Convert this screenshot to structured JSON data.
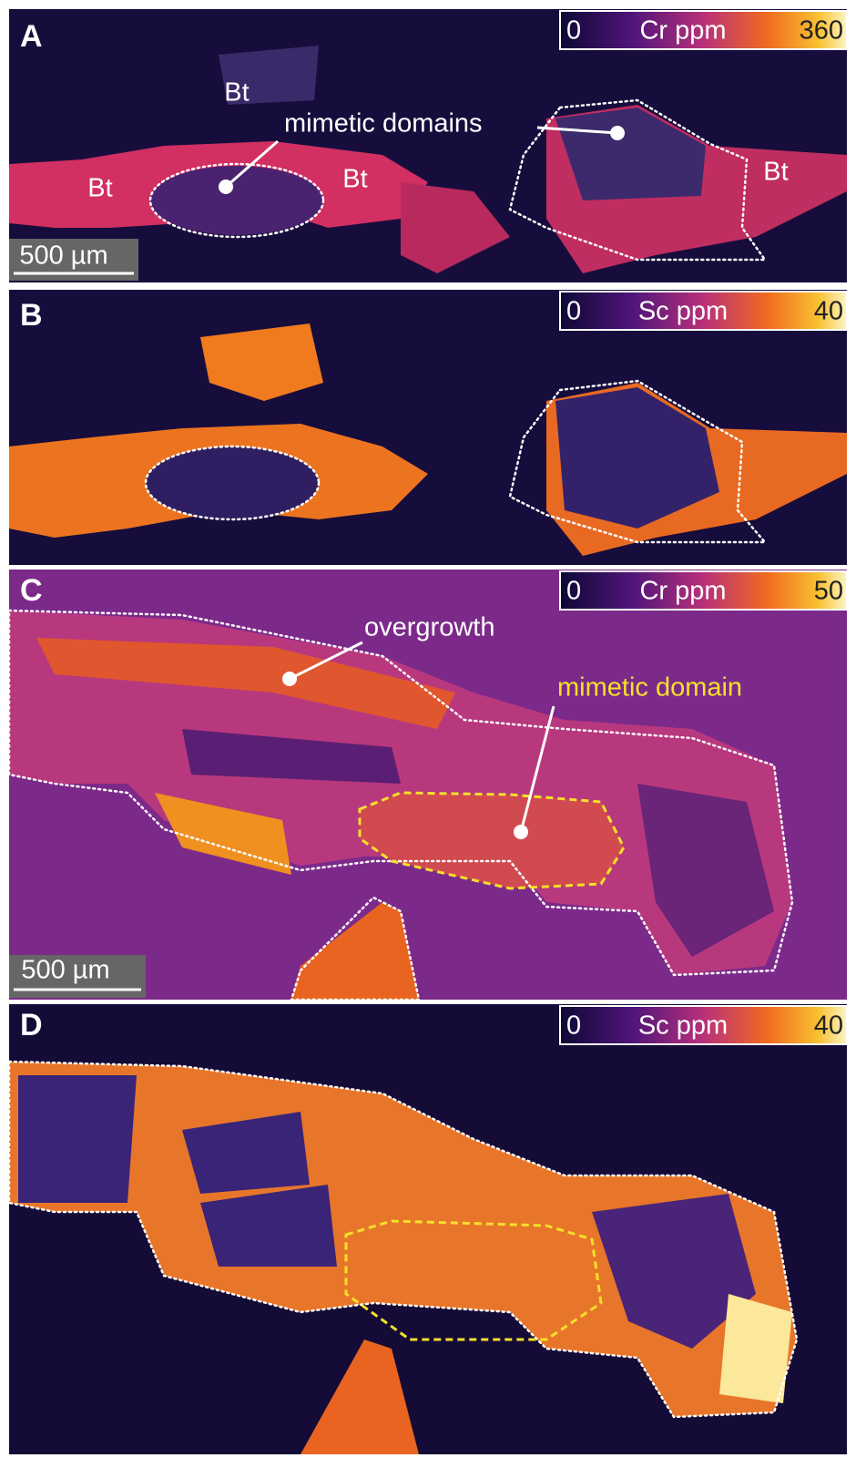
{
  "panels": [
    {
      "label": "A",
      "colorbar": {
        "min": 0,
        "title": "Cr ppm",
        "max": 360
      },
      "annotations": [
        "Bt",
        "Bt",
        "Bt",
        "Bt",
        "mimetic domains"
      ],
      "scale_bar": "500 µm"
    },
    {
      "label": "B",
      "colorbar": {
        "min": 0,
        "title": "Sc ppm",
        "max": 40
      }
    },
    {
      "label": "C",
      "colorbar": {
        "min": 0,
        "title": "Cr ppm",
        "max": 50
      },
      "annotations": [
        "overgrowth",
        "mimetic domain"
      ],
      "scale_bar": "500 µm"
    },
    {
      "label": "D",
      "colorbar": {
        "min": 0,
        "title": "Sc ppm",
        "max": 40
      }
    }
  ]
}
